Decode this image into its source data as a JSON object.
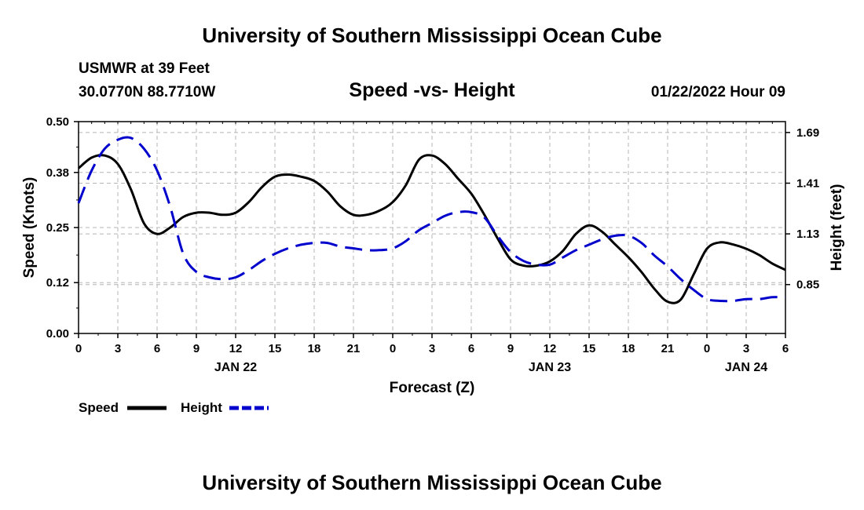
{
  "header": {
    "title": "University of Southern Mississippi Ocean Cube",
    "station": "USMWR at 39 Feet",
    "coordinates": "30.0770N  88.7710W",
    "datetime": "01/22/2022 Hour 09"
  },
  "footer": {
    "title": "University of Southern Mississippi Ocean Cube"
  },
  "colors": {
    "speed": "#000000",
    "height": "#0000cc",
    "grid": "#b4b4b4"
  },
  "chart_data": {
    "type": "line",
    "title": "Speed -vs- Height",
    "xlabel": "Forecast (Z)",
    "ylabel": "Speed (Knots)",
    "y2label": "Height (feet)",
    "x_range": [
      0,
      54
    ],
    "ylim": [
      0,
      0.5
    ],
    "y2lim": [
      0.58,
      1.75
    ],
    "x_ticks": [
      0,
      3,
      6,
      9,
      12,
      15,
      18,
      21,
      24,
      27,
      30,
      33,
      36,
      39,
      42,
      45,
      48,
      51,
      54
    ],
    "x_tick_labels": [
      "0",
      "3",
      "6",
      "9",
      "12",
      "15",
      "18",
      "21",
      "0",
      "3",
      "6",
      "9",
      "12",
      "15",
      "18",
      "21",
      "0",
      "3",
      "6"
    ],
    "day_labels": [
      {
        "x": 12,
        "label": "JAN 22"
      },
      {
        "x": 36,
        "label": "JAN 23"
      },
      {
        "x": 51,
        "label": "JAN 24"
      }
    ],
    "y_ticks": [
      0.0,
      0.12,
      0.25,
      0.38,
      0.5
    ],
    "y_tick_labels": [
      "0.00",
      "0.12",
      "0.25",
      "0.38",
      "0.50"
    ],
    "y2_ticks": [
      0.85,
      1.13,
      1.41,
      1.69
    ],
    "y2_tick_labels": [
      "0.85",
      "1.13",
      "1.41",
      "1.69"
    ],
    "legend": [
      "Speed",
      "Height"
    ],
    "series": [
      {
        "name": "Speed",
        "axis": "left",
        "style": "solid",
        "x": [
          0,
          1,
          2,
          3,
          4,
          5,
          6,
          7,
          8,
          9,
          10,
          11,
          12,
          13,
          14,
          15,
          16,
          17,
          18,
          19,
          20,
          21,
          22,
          23,
          24,
          25,
          26,
          27,
          28,
          29,
          30,
          31,
          32,
          33,
          34,
          35,
          36,
          37,
          38,
          39,
          40,
          41,
          42,
          43,
          44,
          45,
          46,
          47,
          48,
          49,
          50,
          51,
          52,
          53,
          54
        ],
        "values": [
          0.39,
          0.415,
          0.42,
          0.4,
          0.34,
          0.26,
          0.235,
          0.25,
          0.275,
          0.285,
          0.285,
          0.28,
          0.285,
          0.31,
          0.345,
          0.37,
          0.375,
          0.37,
          0.36,
          0.335,
          0.3,
          0.28,
          0.28,
          0.29,
          0.31,
          0.35,
          0.41,
          0.42,
          0.4,
          0.365,
          0.33,
          0.28,
          0.225,
          0.175,
          0.16,
          0.16,
          0.17,
          0.195,
          0.235,
          0.255,
          0.24,
          0.21,
          0.18,
          0.145,
          0.105,
          0.075,
          0.08,
          0.14,
          0.2,
          0.215,
          0.21,
          0.2,
          0.185,
          0.165,
          0.15
        ]
      },
      {
        "name": "Height",
        "axis": "right",
        "style": "dashed",
        "x": [
          0,
          1,
          2,
          3,
          4,
          5,
          6,
          7,
          8,
          9,
          10,
          11,
          12,
          13,
          14,
          15,
          16,
          17,
          18,
          19,
          20,
          21,
          22,
          23,
          24,
          25,
          26,
          27,
          28,
          29,
          30,
          31,
          32,
          33,
          34,
          35,
          36,
          37,
          38,
          39,
          40,
          41,
          42,
          43,
          44,
          45,
          46,
          47,
          48,
          49,
          50,
          51,
          52,
          53,
          54
        ],
        "values": [
          1.3,
          1.48,
          1.6,
          1.65,
          1.66,
          1.6,
          1.48,
          1.28,
          1.02,
          0.92,
          0.89,
          0.88,
          0.89,
          0.93,
          0.98,
          1.02,
          1.05,
          1.07,
          1.08,
          1.08,
          1.06,
          1.05,
          1.04,
          1.04,
          1.05,
          1.09,
          1.15,
          1.19,
          1.23,
          1.25,
          1.25,
          1.22,
          1.12,
          1.03,
          0.98,
          0.96,
          0.96,
          1.0,
          1.04,
          1.07,
          1.1,
          1.12,
          1.12,
          1.08,
          1.01,
          0.95,
          0.88,
          0.82,
          0.77,
          0.76,
          0.76,
          0.77,
          0.77,
          0.78,
          0.78
        ]
      }
    ]
  }
}
